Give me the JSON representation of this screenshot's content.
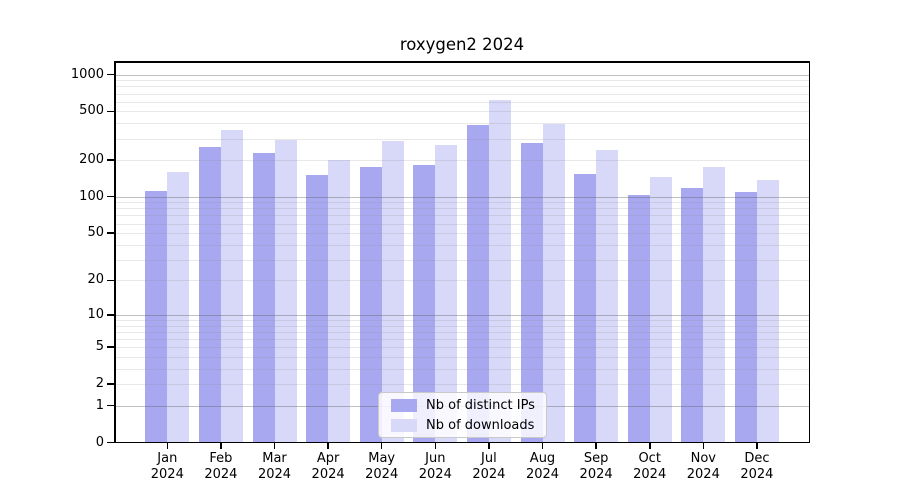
{
  "chart_data": {
    "type": "bar",
    "title": "roxygen2 2024",
    "year_label": "2024",
    "categories": [
      "Jan",
      "Feb",
      "Mar",
      "Apr",
      "May",
      "Jun",
      "Jul",
      "Aug",
      "Sep",
      "Oct",
      "Nov",
      "Dec"
    ],
    "series": [
      {
        "name": "Nb of distinct IPs",
        "color": "#a8a8f0",
        "values": [
          112,
          258,
          228,
          152,
          176,
          182,
          384,
          277,
          153,
          103,
          118,
          109
        ]
      },
      {
        "name": "Nb of downloads",
        "color": "#d8d8f9",
        "values": [
          160,
          350,
          292,
          200,
          288,
          265,
          614,
          396,
          243,
          146,
          175,
          138
        ]
      }
    ],
    "yscale": "log1p",
    "yticks": [
      0,
      1,
      2,
      5,
      10,
      20,
      50,
      100,
      200,
      500,
      1000
    ],
    "ylim": [
      0,
      1290
    ],
    "xlabel": "",
    "ylabel": "",
    "grid": {
      "major_values": [
        1,
        10,
        100,
        1000
      ],
      "minor_values": [
        2,
        3,
        4,
        5,
        6,
        7,
        8,
        9,
        20,
        30,
        40,
        50,
        60,
        70,
        80,
        90,
        200,
        300,
        400,
        500,
        600,
        700,
        800,
        900
      ],
      "drawn_above_bars": true,
      "major_color": "#bdbdbd",
      "minor_color": "#ebebeb"
    },
    "legend_position": "inside-bottom-center",
    "axis_color": "#000000",
    "background_color": "#ffffff"
  }
}
